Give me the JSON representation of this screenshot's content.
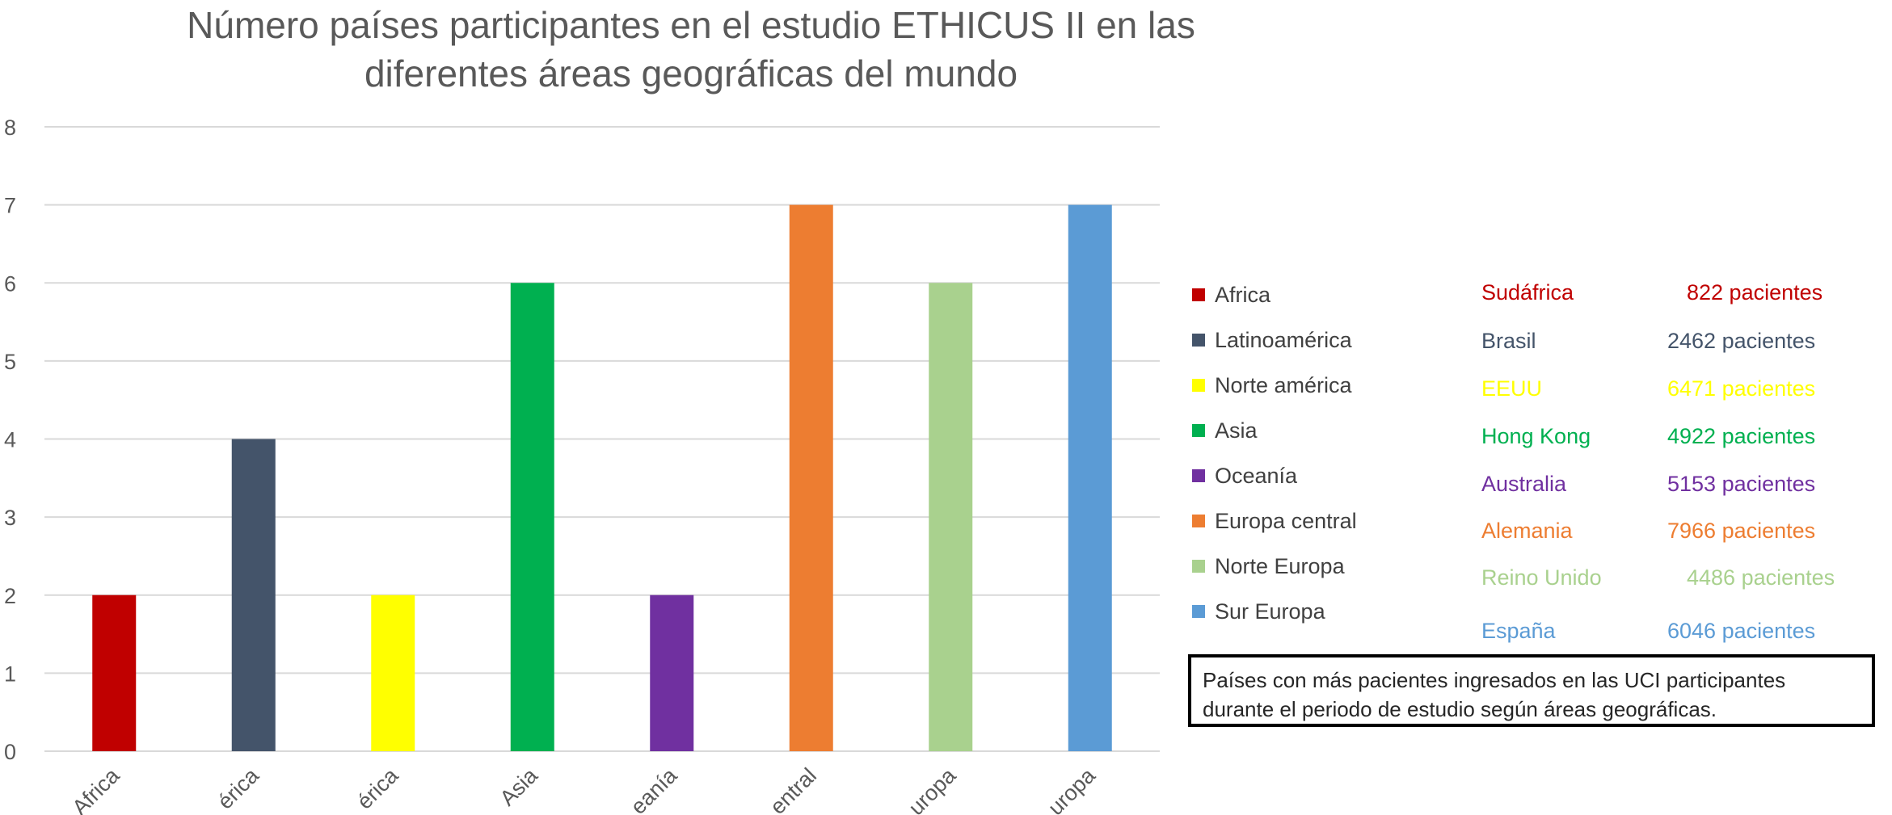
{
  "chart_data": {
    "type": "bar",
    "title": "Número países participantes en el estudio ETHICUS II en las diferentes áreas geográficas del mundo",
    "title_lines": [
      "Número países participantes en el estudio ETHICUS II en las",
      "diferentes áreas geográficas del mundo"
    ],
    "categories": [
      "Africa",
      "Latinoamérica",
      "Norte américa",
      "Asia",
      "Oceanía",
      "Europa central",
      "Norte Europa",
      "Sur Europa"
    ],
    "tick_labels_visible": [
      "Africa",
      "érica",
      "érica",
      "Asia",
      "eanía",
      "entral",
      "uropa",
      "uropa"
    ],
    "values": [
      2,
      4,
      2,
      6,
      2,
      7,
      6,
      7
    ],
    "colors": [
      "#C00000",
      "#44546A",
      "#FFFF00",
      "#00B050",
      "#7030A0",
      "#ED7D31",
      "#A9D18E",
      "#5B9BD5"
    ],
    "ylim": [
      0,
      8
    ],
    "yticks": [
      0,
      1,
      2,
      3,
      4,
      5,
      6,
      7,
      8
    ],
    "xlabel": "",
    "ylabel": "",
    "grid": true,
    "legend_position": "right"
  },
  "legend": [
    {
      "label": "Africa",
      "color": "#C00000"
    },
    {
      "label": "Latinoamérica",
      "color": "#44546A"
    },
    {
      "label": "Norte américa",
      "color": "#FFFF00"
    },
    {
      "label": "Asia",
      "color": "#00B050"
    },
    {
      "label": "Oceanía",
      "color": "#7030A0"
    },
    {
      "label": "Europa central",
      "color": "#ED7D31"
    },
    {
      "label": "Norte Europa",
      "color": "#A9D18E"
    },
    {
      "label": "Sur Europa",
      "color": "#5B9BD5"
    }
  ],
  "countries": [
    {
      "country": "Sudáfrica",
      "patients": "822 pacientes",
      "color": "#C00000"
    },
    {
      "country": "Brasil",
      "patients": "2462 pacientes",
      "color": "#44546A"
    },
    {
      "country": "EEUU",
      "patients": "6471 pacientes",
      "color": "#FFFF00"
    },
    {
      "country": "Hong Kong",
      "patients": "4922 pacientes",
      "color": "#00B050"
    },
    {
      "country": "Australia",
      "patients": "5153 pacientes",
      "color": "#7030A0"
    },
    {
      "country": "Alemania",
      "patients": "7966 pacientes",
      "color": "#ED7D31"
    },
    {
      "country": "Reino Unido",
      "patients": "4486 pacientes",
      "color": "#A9D18E"
    },
    {
      "country": "España",
      "patients": "6046 pacientes",
      "color": "#5B9BD5"
    }
  ],
  "note": "Países con más pacientes ingresados en las UCI participantes durante el periodo de estudio según áreas geográficas."
}
